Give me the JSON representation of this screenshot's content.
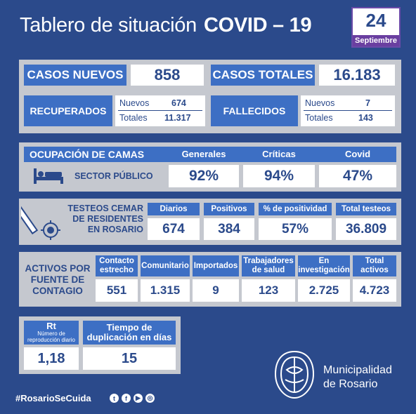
{
  "header": {
    "title": "Tablero de situación",
    "title_bold": "COVID – 19",
    "day": "24",
    "month": "Septiembre"
  },
  "casos": {
    "nuevos_label": "CASOS NUEVOS",
    "nuevos_value": "858",
    "totales_label": "CASOS TOTALES",
    "totales_value": "16.183"
  },
  "recuperados": {
    "label": "RECUPERADOS",
    "nuevos_label": "Nuevos",
    "nuevos_value": "674",
    "totales_label": "Totales",
    "totales_value": "11.317"
  },
  "fallecidos": {
    "label": "FALLECIDOS",
    "nuevos_label": "Nuevos",
    "nuevos_value": "7",
    "totales_label": "Totales",
    "totales_value": "143"
  },
  "camas": {
    "title": "OCUPACIÓN DE CAMAS",
    "sector": "SECTOR PÚBLICO",
    "cols": [
      "Generales",
      "Críticas",
      "Covid"
    ],
    "values": [
      "92%",
      "94%",
      "47%"
    ]
  },
  "testeos": {
    "label": "TESTEOS CEMAR DE RESIDENTES EN ROSARIO",
    "cols": [
      "Diarios",
      "Positivos",
      "% de positividad",
      "Total testeos"
    ],
    "values": [
      "674",
      "384",
      "57%",
      "36.809"
    ]
  },
  "activos": {
    "label": "ACTIVOS POR FUENTE DE CONTAGIO",
    "cols": [
      "Contacto estrecho",
      "Comunitario",
      "Importados",
      "Trabajadores de salud",
      "En investigación",
      "Total activos"
    ],
    "values": [
      "551",
      "1.315",
      "9",
      "123",
      "2.725",
      "4.723"
    ]
  },
  "rt": {
    "label": "Rt",
    "sublabel": "Número de reproducción diario",
    "value": "1,18",
    "dup_label": "Tiempo de duplicación en días",
    "dup_value": "15"
  },
  "footer": {
    "hashtag": "#RosarioSeCuida",
    "muni_line1": "Municipalidad",
    "muni_line2": "de Rosario"
  },
  "icons": [
    "bed-icon",
    "test-tube-icon",
    "virus-icon",
    "twitter-icon",
    "facebook-icon",
    "youtube-icon",
    "instagram-icon",
    "municipal-seal-icon"
  ]
}
